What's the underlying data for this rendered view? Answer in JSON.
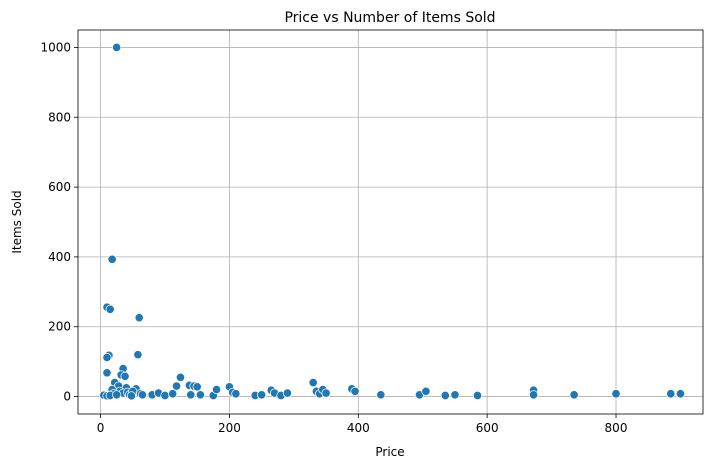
{
  "chart_data": {
    "type": "scatter",
    "title": "Price vs Number of Items Sold",
    "xlabel": "Price",
    "ylabel": "Items Sold",
    "xlim": [
      -35,
      935
    ],
    "ylim": [
      -50,
      1050
    ],
    "xticks": [
      0,
      200,
      400,
      600,
      800
    ],
    "yticks": [
      0,
      200,
      400,
      600,
      800,
      1000
    ],
    "grid": true,
    "marker_color": "#1f77b4",
    "points": [
      [
        25,
        1000
      ],
      [
        18,
        393
      ],
      [
        10,
        256
      ],
      [
        15,
        250
      ],
      [
        60,
        226
      ],
      [
        58,
        120
      ],
      [
        13,
        118
      ],
      [
        10,
        112
      ],
      [
        10,
        68
      ],
      [
        124,
        55
      ],
      [
        35,
        80
      ],
      [
        32,
        62
      ],
      [
        38,
        58
      ],
      [
        22,
        40
      ],
      [
        28,
        30
      ],
      [
        40,
        25
      ],
      [
        18,
        20
      ],
      [
        30,
        15
      ],
      [
        35,
        10
      ],
      [
        42,
        12
      ],
      [
        45,
        5
      ],
      [
        55,
        22
      ],
      [
        50,
        15
      ],
      [
        62,
        8
      ],
      [
        20,
        8
      ],
      [
        5,
        4
      ],
      [
        10,
        2
      ],
      [
        15,
        3
      ],
      [
        25,
        5
      ],
      [
        48,
        2
      ],
      [
        65,
        5
      ],
      [
        80,
        5
      ],
      [
        90,
        10
      ],
      [
        100,
        3
      ],
      [
        112,
        8
      ],
      [
        118,
        30
      ],
      [
        138,
        32
      ],
      [
        145,
        30
      ],
      [
        150,
        28
      ],
      [
        155,
        5
      ],
      [
        140,
        5
      ],
      [
        175,
        3
      ],
      [
        180,
        20
      ],
      [
        200,
        28
      ],
      [
        205,
        12
      ],
      [
        210,
        8
      ],
      [
        240,
        3
      ],
      [
        250,
        5
      ],
      [
        265,
        18
      ],
      [
        270,
        10
      ],
      [
        280,
        3
      ],
      [
        290,
        10
      ],
      [
        330,
        40
      ],
      [
        335,
        15
      ],
      [
        340,
        8
      ],
      [
        345,
        20
      ],
      [
        350,
        10
      ],
      [
        390,
        22
      ],
      [
        395,
        15
      ],
      [
        435,
        5
      ],
      [
        495,
        5
      ],
      [
        505,
        15
      ],
      [
        535,
        3
      ],
      [
        550,
        5
      ],
      [
        585,
        3
      ],
      [
        672,
        18
      ],
      [
        672,
        5
      ],
      [
        735,
        5
      ],
      [
        800,
        8
      ],
      [
        885,
        8
      ],
      [
        900,
        8
      ]
    ]
  }
}
